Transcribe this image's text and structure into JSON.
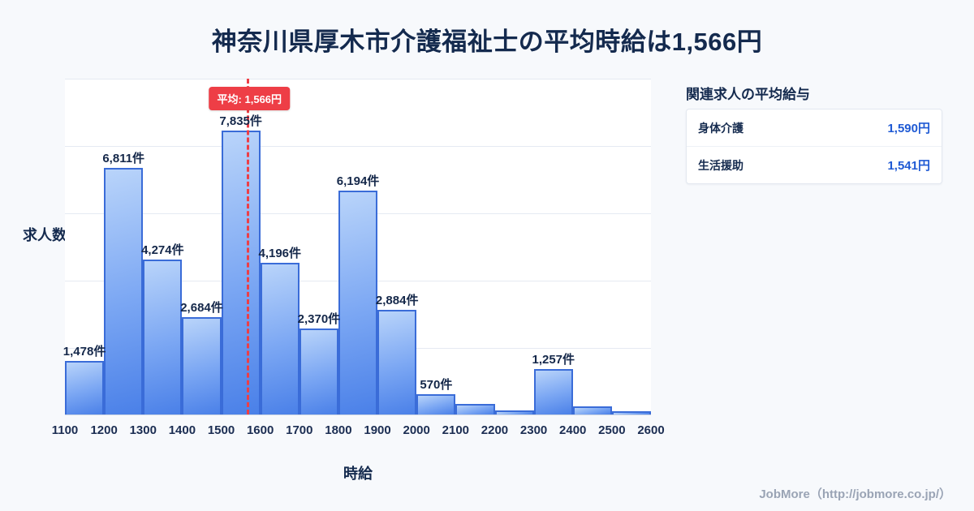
{
  "page": {
    "title": "神奈川県厚木市介護福祉士の平均時給は1,566円",
    "footer": "JobMore（http://jobmore.co.jp/）"
  },
  "chart_data": {
    "type": "bar",
    "title": "神奈川県厚木市介護福祉士の平均時給は1,566円",
    "xlabel": "時給",
    "ylabel": "求人数",
    "x_range": [
      1100,
      2600
    ],
    "x_ticks": [
      "1100",
      "1200",
      "1300",
      "1400",
      "1500",
      "1600",
      "1700",
      "1800",
      "1900",
      "2000",
      "2100",
      "2200",
      "2300",
      "2400",
      "2500",
      "2600"
    ],
    "bin_starts": [
      1100,
      1200,
      1300,
      1400,
      1500,
      1600,
      1700,
      1800,
      1900,
      2000,
      2100,
      2200,
      2300,
      2400,
      2500
    ],
    "values": [
      1478,
      6811,
      4274,
      2684,
      7835,
      4196,
      2370,
      6194,
      2884,
      570,
      290,
      110,
      1257,
      220,
      90
    ],
    "bar_labels": [
      "1,478件",
      "6,811件",
      "4,274件",
      "2,684件",
      "7,835件",
      "4,196件",
      "2,370件",
      "6,194件",
      "2,884件",
      "570件",
      "",
      "",
      "1,257件",
      "",
      ""
    ],
    "mean_line": {
      "value": 1566,
      "label": "平均: 1,566円"
    },
    "ylim": [
      0,
      9300
    ],
    "grid": true,
    "legend": false,
    "colors": {
      "bar_top": "#b9d4fa",
      "bar_bottom": "#4a80e8",
      "bar_border": "#3a6cd8",
      "mean": "#ee3e46",
      "accent_value": "#1f5ad4",
      "title_text": "#142a4e"
    }
  },
  "side_panel": {
    "title": "関連求人の平均給与",
    "rows": [
      {
        "label": "身体介護",
        "value": "1,590円"
      },
      {
        "label": "生活援助",
        "value": "1,541円"
      }
    ]
  }
}
